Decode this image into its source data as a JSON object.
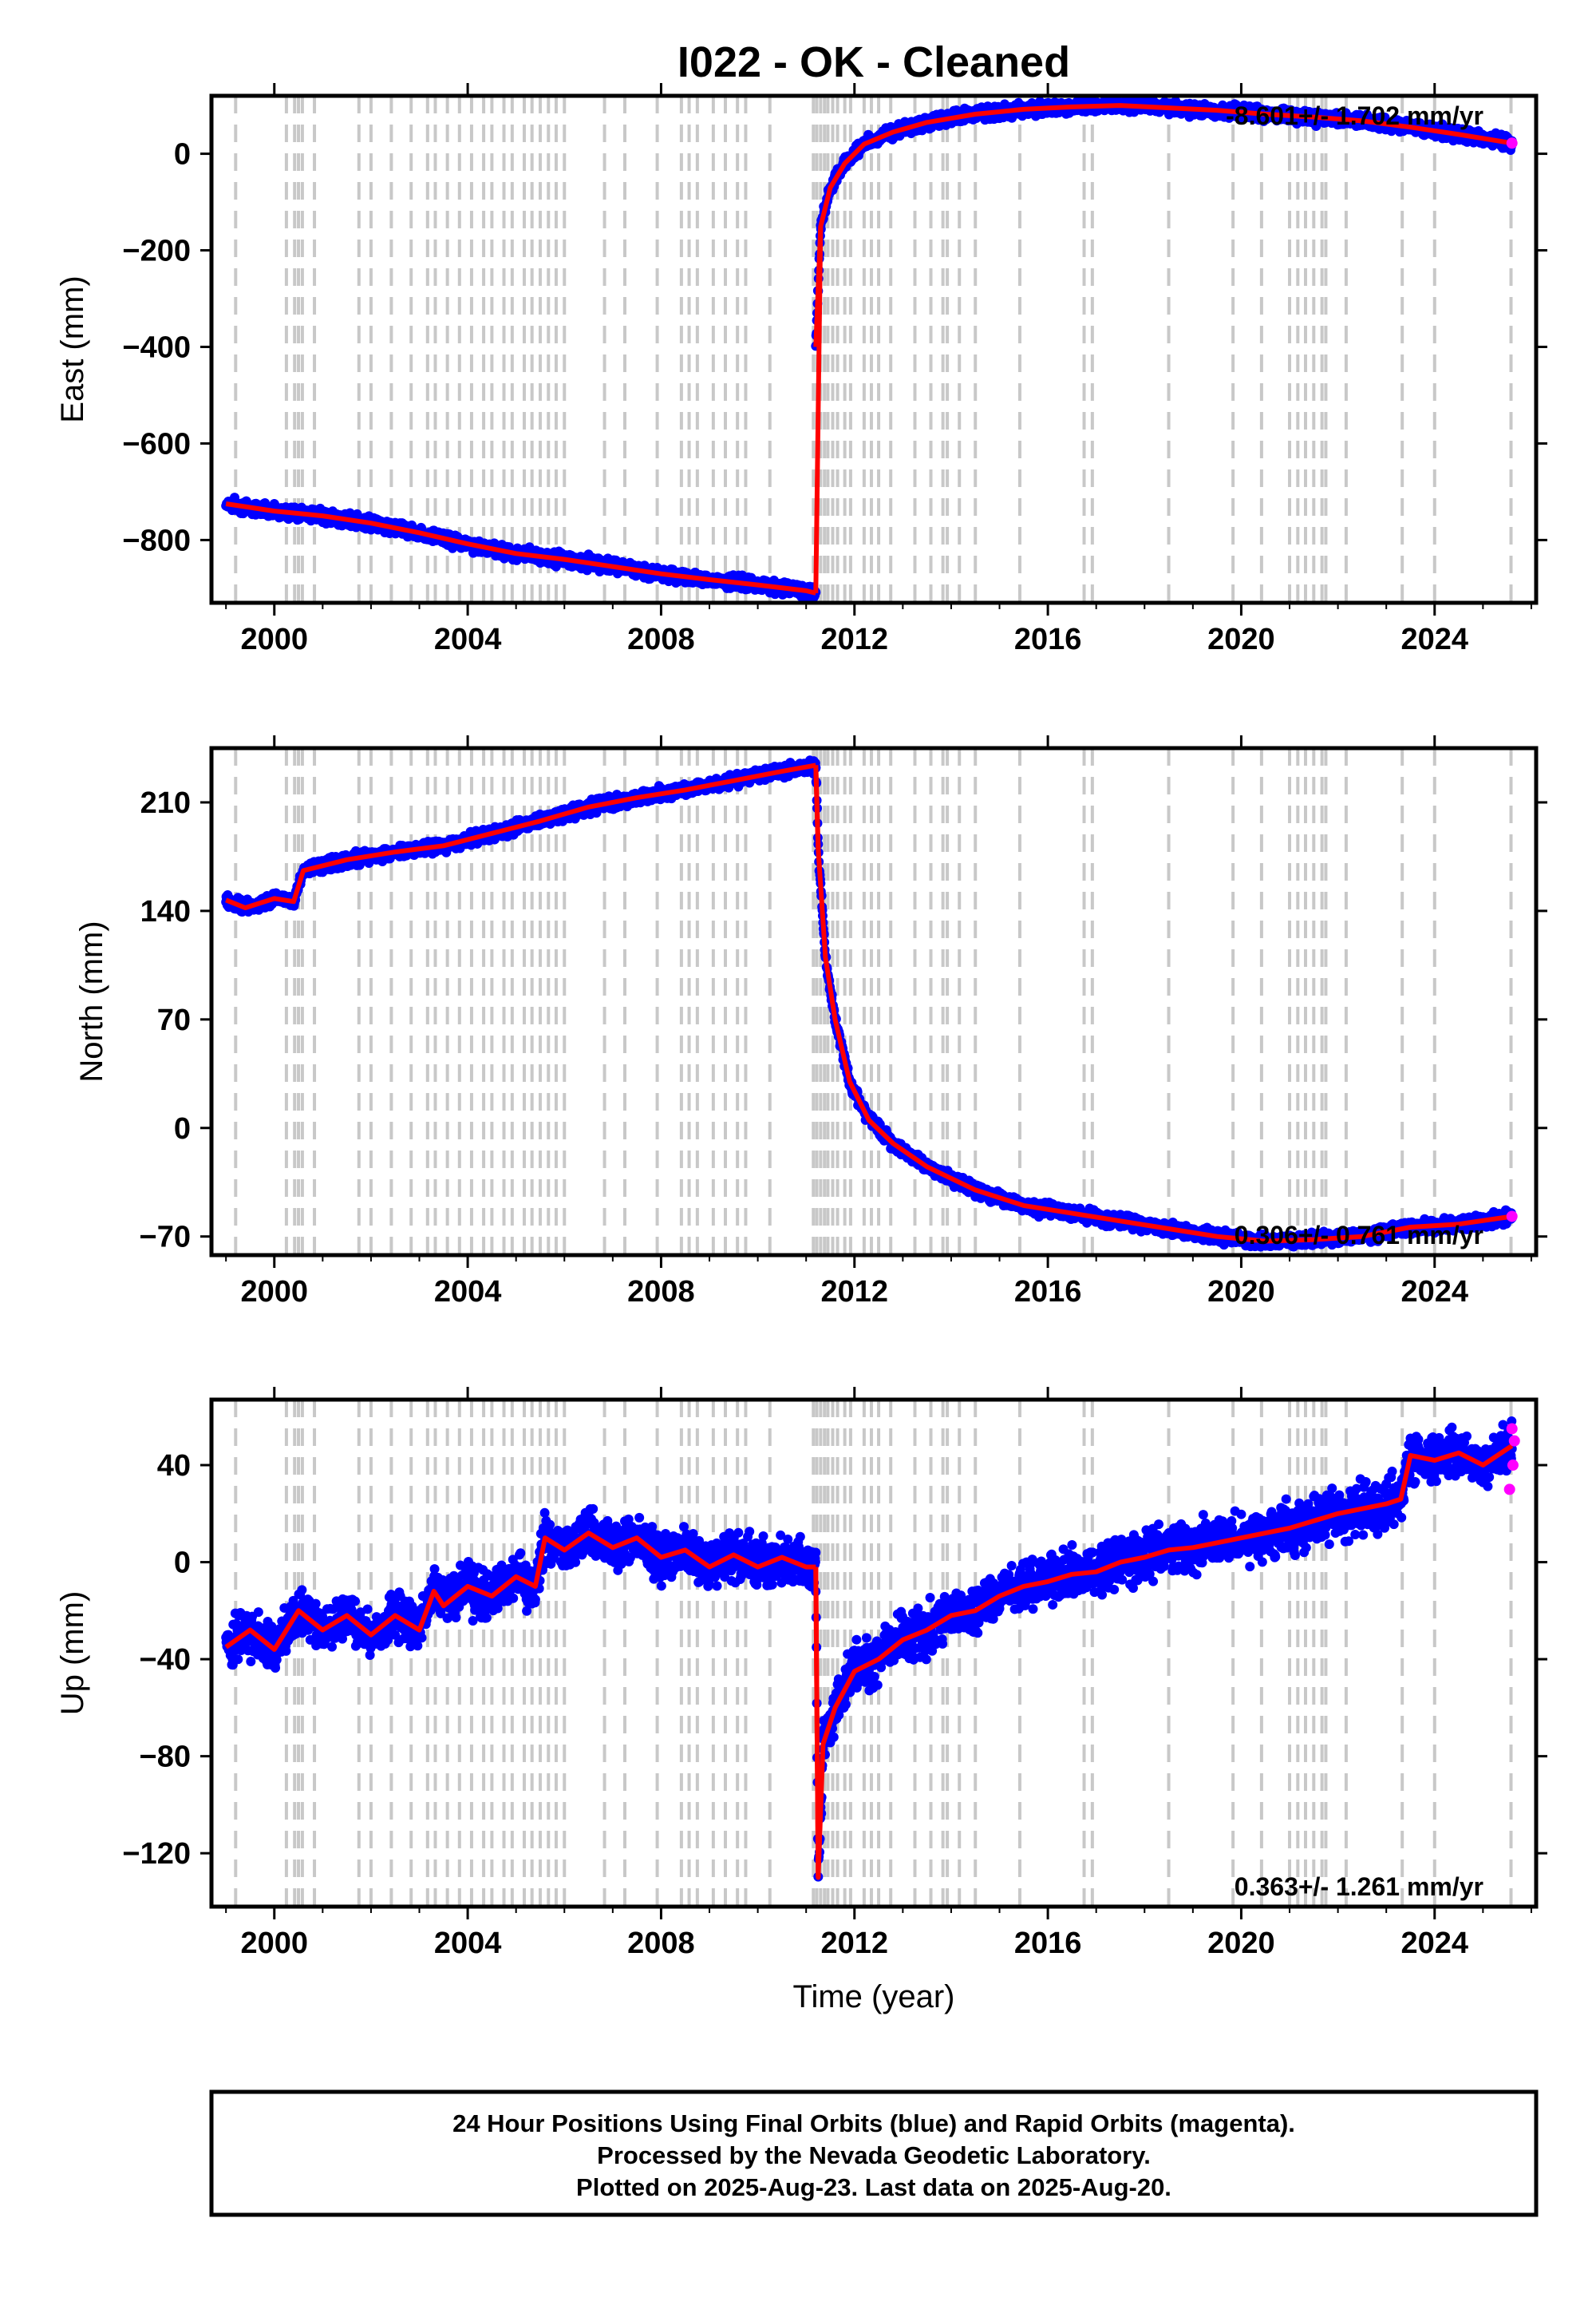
{
  "chart_data": {
    "type": "scatter",
    "title": "I022  - OK - Cleaned",
    "xlabel": "Time (year)",
    "xlim": [
      1998.7,
      2026.1
    ],
    "xticks": [
      2000,
      2004,
      2008,
      2012,
      2016,
      2020,
      2024
    ],
    "colors": {
      "final": "#0000ff",
      "rapid": "#ff00ff",
      "model": "#ff0000",
      "event_lines": "#c8c8c8"
    },
    "event_lines": [
      1999.2,
      2000.25,
      2000.42,
      2000.5,
      2000.58,
      2000.83,
      2001.75,
      2002.0,
      2002.42,
      2002.83,
      2003.17,
      2003.33,
      2003.58,
      2003.83,
      2004.08,
      2004.33,
      2004.5,
      2004.75,
      2004.92,
      2005.17,
      2005.33,
      2005.5,
      2005.67,
      2005.83,
      2006.0,
      2006.83,
      2007.25,
      2007.92,
      2008.42,
      2008.58,
      2008.75,
      2009.08,
      2009.33,
      2009.58,
      2009.75,
      2010.25,
      2011.15,
      2011.22,
      2011.3,
      2011.38,
      2011.45,
      2011.55,
      2011.65,
      2011.8,
      2011.92,
      2012.2,
      2012.35,
      2012.5,
      2012.75,
      2013.25,
      2013.58,
      2013.83,
      2013.92,
      2014.17,
      2014.5,
      2015.42,
      2016.75,
      2016.92,
      2018.5,
      2019.83,
      2020.42,
      2021.0,
      2021.17,
      2021.33,
      2021.5,
      2021.67,
      2021.75,
      2022.17,
      2023.33,
      2024.0,
      2025.58
    ],
    "panels": [
      {
        "ylabel": "East (mm)",
        "ylim": [
          -930,
          120
        ],
        "yticks": [
          -800,
          -600,
          -400,
          -200,
          0
        ],
        "rate": "-8.601+/- 1.702 mm/yr",
        "rate_position": "top-right",
        "series": [
          {
            "role": "final-orbits",
            "x": [
              1999.0,
              2000.0,
              2001.0,
              2002.0,
              2003.0,
              2004.0,
              2005.0,
              2006.0,
              2007.0,
              2008.0,
              2009.0,
              2010.0,
              2011.0,
              2011.2
            ],
            "y": [
              -725,
              -740,
              -750,
              -765,
              -785,
              -808,
              -828,
              -840,
              -855,
              -870,
              -882,
              -893,
              -905,
              -910
            ]
          },
          {
            "role": "final-orbits",
            "x": [
              2011.2,
              2011.3,
              2011.5,
              2011.8,
              2012.2,
              2012.8,
              2013.5,
              2014.5,
              2015.5,
              2016.5,
              2017.5,
              2018.5,
              2019.5,
              2020.5,
              2021.5,
              2022.5,
              2023.5,
              2024.5,
              2025.6
            ],
            "y": [
              -400,
              -150,
              -70,
              -20,
              20,
              45,
              65,
              82,
              92,
              97,
              100,
              95,
              90,
              82,
              76,
              68,
              55,
              40,
              22
            ]
          }
        ],
        "rapid": {
          "x": [
            2025.6
          ],
          "y": [
            22
          ]
        }
      },
      {
        "ylabel": "North (mm)",
        "ylim": [
          -82,
          245
        ],
        "yticks": [
          -70,
          0,
          70,
          140,
          210
        ],
        "rate": "0.306+/- 0.761 mm/yr",
        "rate_position": "bottom-right",
        "series": [
          {
            "role": "final-orbits",
            "x": [
              1999.0,
              1999.4,
              2000.0,
              2000.4,
              2000.6,
              2001.5,
              2002.5,
              2003.5,
              2004.5,
              2005.5,
              2006.5,
              2007.5,
              2008.5,
              2009.5,
              2010.5,
              2011.2
            ],
            "y": [
              147,
              142,
              148,
              146,
              166,
              173,
              178,
              182,
              190,
              198,
              207,
              213,
              218,
              224,
              230,
              234
            ]
          },
          {
            "role": "final-orbits",
            "x": [
              2011.2,
              2011.25,
              2011.4,
              2011.6,
              2011.9,
              2012.3,
              2012.8,
              2013.5,
              2014.5,
              2015.5,
              2016.5,
              2017.5,
              2018.5,
              2019.5,
              2020.5,
              2021.5,
              2022.5,
              2023.5,
              2024.5,
              2025.6
            ],
            "y": [
              234,
              180,
              110,
              70,
              30,
              5,
              -10,
              -25,
              -40,
              -50,
              -55,
              -60,
              -65,
              -70,
              -73,
              -72,
              -70,
              -64,
              -62,
              -57
            ]
          }
        ],
        "rapid": {
          "x": [
            2025.6
          ],
          "y": [
            -57
          ]
        }
      },
      {
        "ylabel": "Up (mm)",
        "ylim": [
          -142,
          67
        ],
        "yticks": [
          -120,
          -80,
          -40,
          0,
          40
        ],
        "rate": "0.363+/- 1.261 mm/yr",
        "rate_position": "bottom-right",
        "series": [
          {
            "role": "final-orbits",
            "x": [
              1999.0,
              1999.5,
              2000.0,
              2000.5,
              2001.0,
              2001.5,
              2002.0,
              2002.5,
              2003.0,
              2003.3,
              2003.5,
              2004.0,
              2004.5,
              2005.0,
              2005.4,
              2005.6,
              2006.0,
              2006.5,
              2007.0,
              2007.5,
              2008.0,
              2008.5,
              2009.0,
              2009.5,
              2010.0,
              2010.5,
              2011.0,
              2011.2
            ],
            "y": [
              -35,
              -28,
              -36,
              -20,
              -28,
              -22,
              -30,
              -22,
              -28,
              -12,
              -18,
              -10,
              -14,
              -6,
              -10,
              10,
              5,
              12,
              6,
              10,
              2,
              5,
              -2,
              3,
              -2,
              2,
              -2,
              -2
            ]
          },
          {
            "role": "final-orbits",
            "x": [
              2011.2,
              2011.25,
              2011.35,
              2011.6,
              2012.0,
              2012.5,
              2013.0,
              2013.5,
              2014.0,
              2014.5,
              2015.0,
              2015.5,
              2016.0,
              2016.5,
              2017.0,
              2017.5,
              2018.0,
              2018.5,
              2019.0,
              2019.5,
              2020.0,
              2020.5,
              2021.0,
              2021.5,
              2022.0,
              2022.5,
              2023.0,
              2023.3,
              2023.5,
              2024.0,
              2024.5,
              2025.0,
              2025.6
            ],
            "y": [
              -2,
              -130,
              -75,
              -60,
              -45,
              -40,
              -32,
              -28,
              -22,
              -20,
              -14,
              -10,
              -8,
              -5,
              -4,
              0,
              2,
              5,
              6,
              8,
              10,
              12,
              14,
              17,
              20,
              22,
              24,
              26,
              44,
              42,
              45,
              40,
              48
            ]
          }
        ],
        "rapid": {
          "x": [
            2025.55,
            2025.6,
            2025.62,
            2025.65
          ],
          "y": [
            30,
            55,
            40,
            50
          ]
        }
      }
    ]
  },
  "footer": {
    "line1": "24 Hour Positions Using Final Orbits (blue) and Rapid Orbits (magenta).",
    "line2": "Processed by the Nevada Geodetic Laboratory.",
    "line3": "Plotted on 2025-Aug-23. Last data on 2025-Aug-20."
  }
}
